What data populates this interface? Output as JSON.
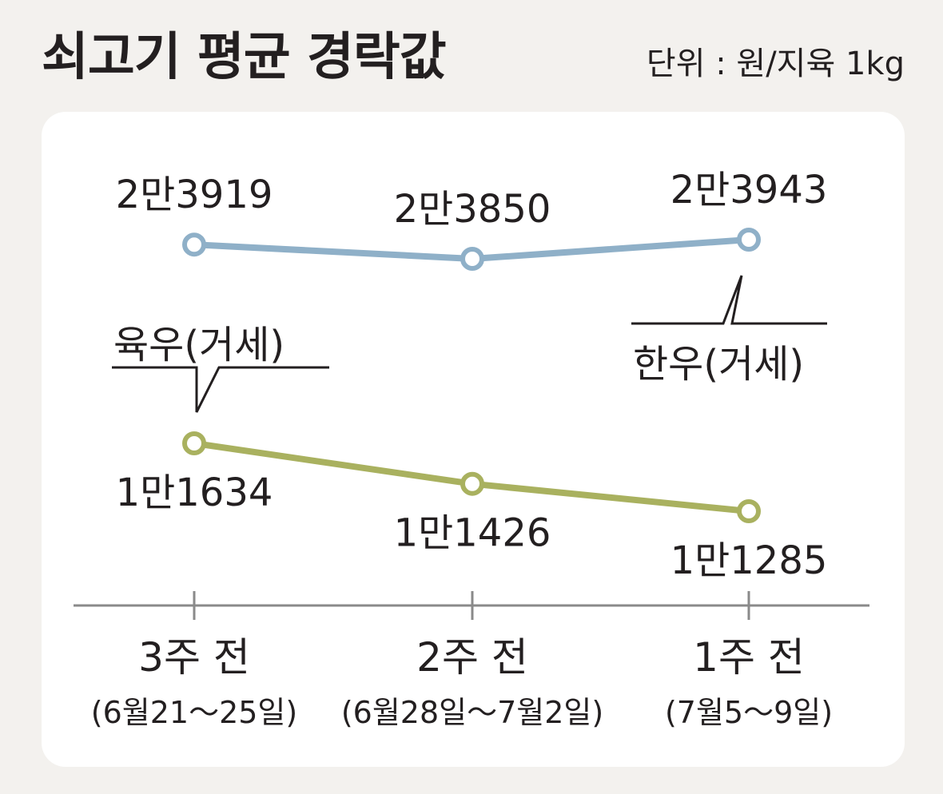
{
  "title": "쇠고기 평균 경락값",
  "unit_label": "단위 : 원/지육 1kg",
  "colors": {
    "hanwoo": "#8fb0c8",
    "yukwoo": "#a9b15f",
    "axis": "#8a8a8a",
    "panel": "#ffffff",
    "background": "#f3f1ee"
  },
  "chart_data": {
    "type": "line",
    "title": "쇠고기 평균 경락값",
    "categories": [
      "3주 전",
      "2주 전",
      "1주 전"
    ],
    "category_dates": [
      "(6월21～25일)",
      "(6월28일～7월2일)",
      "(7월5～9일)"
    ],
    "ylabel": "",
    "xlabel": "",
    "grid": false,
    "series": [
      {
        "name": "한우(거세)",
        "values": [
          23919,
          23850,
          23943
        ],
        "labels": [
          "2만3919",
          "2만3850",
          "2만3943"
        ]
      },
      {
        "name": "육우(거세)",
        "values": [
          11634,
          11426,
          11285
        ],
        "labels": [
          "1만1634",
          "1만1426",
          "1만1285"
        ]
      }
    ]
  }
}
